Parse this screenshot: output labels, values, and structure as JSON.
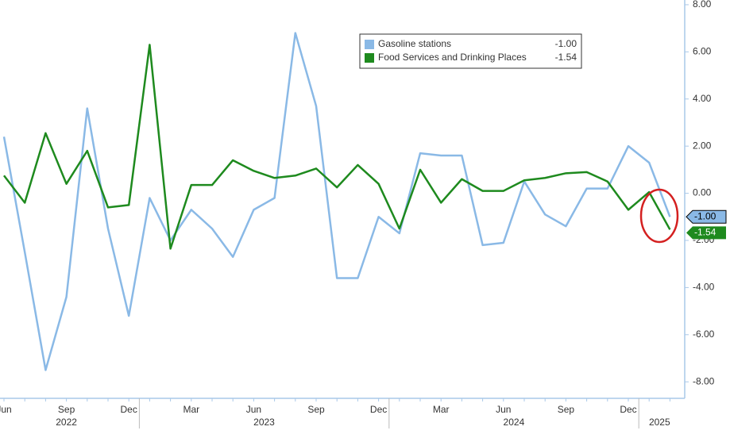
{
  "chart_data": {
    "type": "line",
    "categories": [
      "Jun",
      null,
      null,
      "Sep",
      null,
      null,
      "Dec",
      null,
      null,
      "Mar",
      null,
      null,
      "Jun",
      null,
      null,
      "Sep",
      null,
      null,
      "Dec",
      null,
      null,
      "Mar",
      null,
      null,
      "Jun",
      null,
      null,
      "Sep",
      null,
      null,
      "Dec",
      null,
      null
    ],
    "years": [
      {
        "label": "2022",
        "first": 0,
        "last": 6
      },
      {
        "label": "2023",
        "first": 7,
        "last": 18
      },
      {
        "label": "2024",
        "first": 19,
        "last": 30
      },
      {
        "label": "2025",
        "first": 31,
        "last": 32
      }
    ],
    "series": [
      {
        "name": "Gasoline stations",
        "color": "#8ab9e6",
        "values": [
          2.4,
          -2.5,
          -7.5,
          -4.4,
          3.6,
          -1.5,
          -5.2,
          -0.2,
          -2.0,
          -0.7,
          -1.5,
          -2.7,
          -0.7,
          -0.2,
          6.8,
          3.7,
          -3.6,
          -3.6,
          -1.0,
          -1.7,
          1.7,
          1.6,
          1.6,
          -2.2,
          -2.1,
          0.5,
          -0.9,
          -1.4,
          0.2,
          0.2,
          2.0,
          1.3,
          -1.0
        ],
        "value_labels": [
          null,
          null,
          null,
          null,
          null,
          null,
          null,
          null,
          null,
          null,
          null,
          null,
          null,
          null,
          null,
          null,
          null,
          null,
          null,
          null,
          null,
          null,
          null,
          null,
          null,
          null,
          null,
          null,
          null,
          null,
          null,
          null,
          "-1.00"
        ]
      },
      {
        "name": "Food Services and Drinking Places",
        "color": "#1e8a1e",
        "values": [
          0.75,
          -0.4,
          2.55,
          0.4,
          1.8,
          -0.6,
          -0.5,
          6.3,
          -2.35,
          0.35,
          0.35,
          1.4,
          0.95,
          0.65,
          0.75,
          1.05,
          0.25,
          1.2,
          0.4,
          -1.5,
          1.0,
          -0.4,
          0.6,
          0.1,
          0.1,
          0.55,
          0.65,
          0.85,
          0.9,
          0.5,
          -0.7,
          0.05,
          -1.54
        ],
        "value_labels": [
          null,
          null,
          null,
          null,
          null,
          null,
          null,
          null,
          null,
          null,
          null,
          null,
          null,
          null,
          null,
          null,
          null,
          null,
          null,
          null,
          null,
          null,
          null,
          null,
          null,
          null,
          null,
          null,
          null,
          null,
          null,
          null,
          "-1.54"
        ]
      }
    ],
    "ylim": [
      -8.7,
      8.2
    ],
    "yticks": [
      {
        "value": -8,
        "label": "-8.00"
      },
      {
        "value": -6,
        "label": "-6.00"
      },
      {
        "value": -4,
        "label": "-4.00"
      },
      {
        "value": -2,
        "label": "-2.00"
      },
      {
        "value": 0,
        "label": "0.00"
      },
      {
        "value": 2,
        "label": "2.00"
      },
      {
        "value": 4,
        "label": "4.00"
      },
      {
        "value": 6,
        "label": "6.00"
      },
      {
        "value": 8,
        "label": "8.00"
      }
    ],
    "legend": "top-center"
  }
}
